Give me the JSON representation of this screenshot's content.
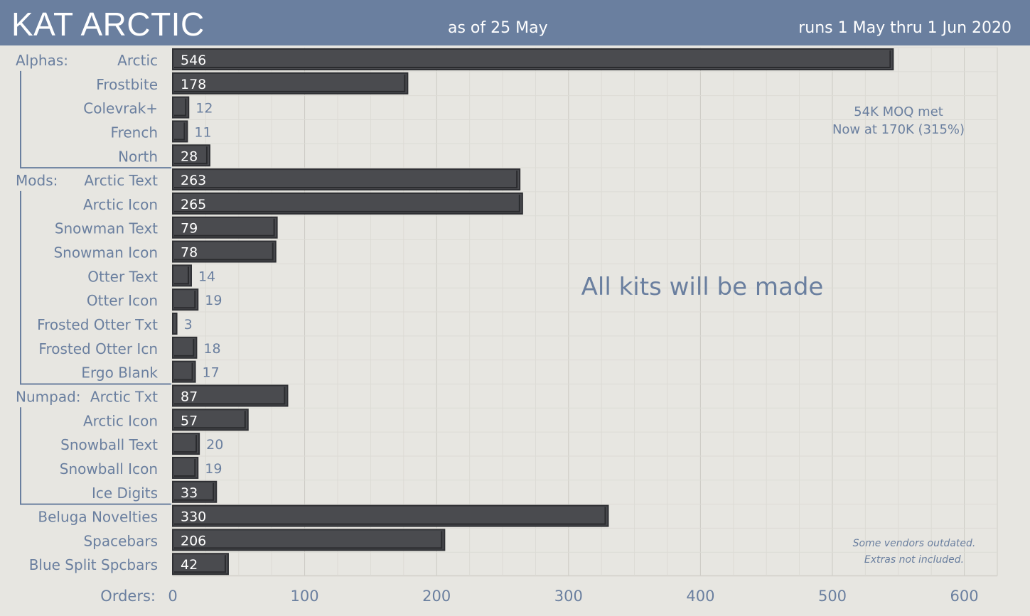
{
  "header": {
    "title": "KAT ARCTIC",
    "as_of": "as of 25 May",
    "runs": "runs 1 May thru 1 Jun 2020"
  },
  "colors": {
    "header_bg": "#6a7f9f",
    "background": "#e7e6e1",
    "plot_bg": "#e7e6e1",
    "bar_fill": "#4a4b4f",
    "bar_border": "#2e2f33",
    "label_text": "#6a7f9f",
    "value_text_inside": "#ffffff",
    "value_text_outside": "#6a7f9f",
    "grid": "#d3d2cc"
  },
  "chart_data": {
    "type": "bar",
    "orientation": "horizontal",
    "x_axis_label": "Orders:",
    "xlim": [
      0,
      625
    ],
    "xticks": [
      0,
      100,
      200,
      300,
      400,
      500,
      600
    ],
    "grid": true,
    "groups": [
      {
        "label": "Alphas:",
        "start": 0,
        "end": 4
      },
      {
        "label": "Mods:",
        "start": 5,
        "end": 13
      },
      {
        "label": "Numpad:",
        "start": 14,
        "end": 18
      }
    ],
    "categories": [
      "Arctic",
      "Frostbite",
      "Colevrak+",
      "French",
      "North",
      "Arctic Text",
      "Arctic Icon",
      "Snowman Text",
      "Snowman Icon",
      "Otter Text",
      "Otter Icon",
      "Frosted Otter Txt",
      "Frosted Otter Icn",
      "Ergo Blank",
      "Arctic Txt",
      "Arctic Icon",
      "Snowball Text",
      "Snowball Icon",
      "Ice Digits",
      "Beluga Novelties",
      "Spacebars",
      "Blue Split Spcbars"
    ],
    "values": [
      546,
      178,
      12,
      11,
      28,
      263,
      265,
      79,
      78,
      14,
      19,
      3,
      18,
      17,
      87,
      57,
      20,
      19,
      33,
      330,
      206,
      42
    ],
    "value_labels": [
      "546",
      "178",
      "12",
      "11",
      "28",
      "263",
      "265",
      "79",
      "78",
      "14",
      "19",
      "3",
      "18",
      "17",
      "87",
      "57",
      "20",
      "19",
      "33",
      "330",
      "206",
      "42"
    ],
    "annotations": {
      "moq_line1": "54K MOQ met",
      "moq_line2": "Now at 170K (315%)",
      "center_text": "All kits will be made",
      "footnote_line1": "Some vendors outdated.",
      "footnote_line2": "Extras not included."
    }
  }
}
